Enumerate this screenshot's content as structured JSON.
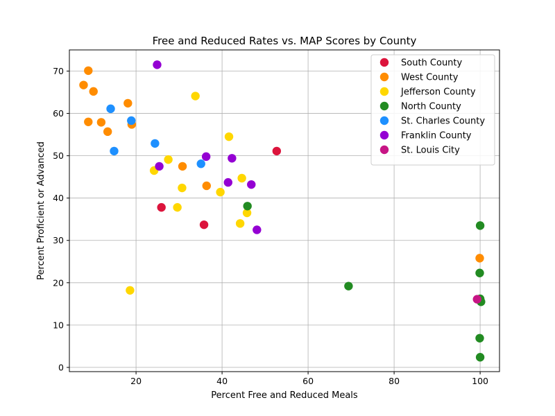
{
  "chart_data": {
    "type": "scatter",
    "title": "Free and Reduced Rates vs. MAP Scores by County",
    "xlabel": "Percent Free and Reduced Meals",
    "ylabel": "Percent Proficient or Advanced",
    "xlim": [
      4.5,
      104.5
    ],
    "ylim": [
      -1,
      75
    ],
    "xticks": [
      20,
      40,
      60,
      80,
      100
    ],
    "yticks": [
      0,
      10,
      20,
      30,
      40,
      50,
      60,
      70
    ],
    "grid": true,
    "legend_position": "top-right",
    "series": [
      {
        "name": "South County",
        "color": "#dc143c",
        "points": [
          [
            52.7,
            51.1
          ],
          [
            25.9,
            37.8
          ],
          [
            35.8,
            33.7
          ]
        ]
      },
      {
        "name": "West County",
        "color": "#ff8c00",
        "points": [
          [
            8.9,
            70.1
          ],
          [
            7.8,
            66.7
          ],
          [
            10.1,
            65.2
          ],
          [
            18.1,
            62.4
          ],
          [
            8.9,
            58.0
          ],
          [
            11.9,
            57.9
          ],
          [
            19.0,
            57.4
          ],
          [
            13.4,
            55.7
          ],
          [
            30.8,
            47.5
          ],
          [
            36.4,
            42.9
          ],
          [
            99.9,
            25.8
          ]
        ]
      },
      {
        "name": "Jefferson County",
        "color": "#ffd700",
        "points": [
          [
            33.8,
            64.1
          ],
          [
            41.6,
            54.5
          ],
          [
            27.5,
            49.1
          ],
          [
            24.2,
            46.5
          ],
          [
            44.6,
            44.7
          ],
          [
            30.7,
            42.4
          ],
          [
            39.6,
            41.4
          ],
          [
            45.8,
            36.5
          ],
          [
            29.6,
            37.8
          ],
          [
            44.2,
            34.0
          ],
          [
            18.6,
            18.2
          ]
        ]
      },
      {
        "name": "North County",
        "color": "#228b22",
        "points": [
          [
            45.9,
            38.1
          ],
          [
            100.0,
            33.5
          ],
          [
            99.9,
            22.3
          ],
          [
            69.4,
            19.2
          ],
          [
            100.0,
            16.2
          ],
          [
            100.2,
            15.5
          ],
          [
            99.9,
            6.9
          ],
          [
            100.0,
            2.4
          ]
        ]
      },
      {
        "name": "St. Charles County",
        "color": "#1e90ff",
        "points": [
          [
            14.1,
            61.1
          ],
          [
            18.9,
            58.3
          ],
          [
            14.9,
            51.1
          ],
          [
            24.4,
            52.9
          ],
          [
            35.1,
            48.1
          ]
        ]
      },
      {
        "name": "Franklin County",
        "color": "#9400d3",
        "points": [
          [
            24.9,
            71.5
          ],
          [
            36.3,
            49.8
          ],
          [
            42.3,
            49.4
          ],
          [
            25.4,
            47.5
          ],
          [
            41.4,
            43.7
          ],
          [
            46.8,
            43.2
          ],
          [
            48.1,
            32.5
          ]
        ]
      },
      {
        "name": "St. Louis City",
        "color": "#c71585",
        "points": [
          [
            99.3,
            16.1
          ]
        ]
      }
    ]
  }
}
